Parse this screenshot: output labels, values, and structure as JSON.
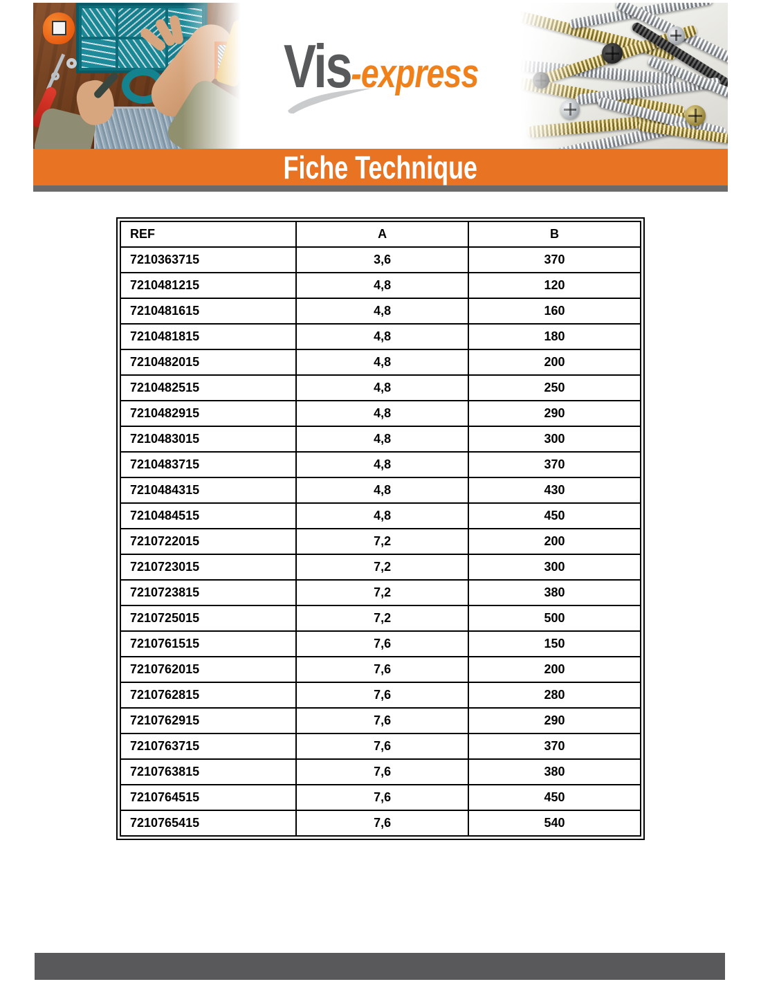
{
  "logo": {
    "brand_primary": "Vis",
    "brand_secondary": "-express"
  },
  "banner": {
    "title": "Fiche Technique"
  },
  "colors": {
    "accent_orange": "#E87423",
    "logo_gray": "#58595B",
    "logo_orange": "#F0801A",
    "swoosh_gray": "#C9CBCD",
    "divider_gray": "#6A6A6A",
    "footer_gray": "#59595B",
    "table_border": "#000000"
  },
  "table": {
    "columns": [
      "REF",
      "A",
      "B"
    ],
    "rows": [
      [
        "7210363715",
        "3,6",
        "370"
      ],
      [
        "7210481215",
        "4,8",
        "120"
      ],
      [
        "7210481615",
        "4,8",
        "160"
      ],
      [
        "7210481815",
        "4,8",
        "180"
      ],
      [
        "7210482015",
        "4,8",
        "200"
      ],
      [
        "7210482515",
        "4,8",
        "250"
      ],
      [
        "7210482915",
        "4,8",
        "290"
      ],
      [
        "7210483015",
        "4,8",
        "300"
      ],
      [
        "7210483715",
        "4,8",
        "370"
      ],
      [
        "7210484315",
        "4,8",
        "430"
      ],
      [
        "7210484515",
        "4,8",
        "450"
      ],
      [
        "7210722015",
        "7,2",
        "200"
      ],
      [
        "7210723015",
        "7,2",
        "300"
      ],
      [
        "7210723815",
        "7,2",
        "380"
      ],
      [
        "7210725015",
        "7,2",
        "500"
      ],
      [
        "7210761515",
        "7,6",
        "150"
      ],
      [
        "7210762015",
        "7,6",
        "200"
      ],
      [
        "7210762815",
        "7,6",
        "280"
      ],
      [
        "7210762915",
        "7,6",
        "290"
      ],
      [
        "7210763715",
        "7,6",
        "370"
      ],
      [
        "7210763815",
        "7,6",
        "380"
      ],
      [
        "7210764515",
        "7,6",
        "450"
      ],
      [
        "7210765415",
        "7,6",
        "540"
      ]
    ]
  }
}
